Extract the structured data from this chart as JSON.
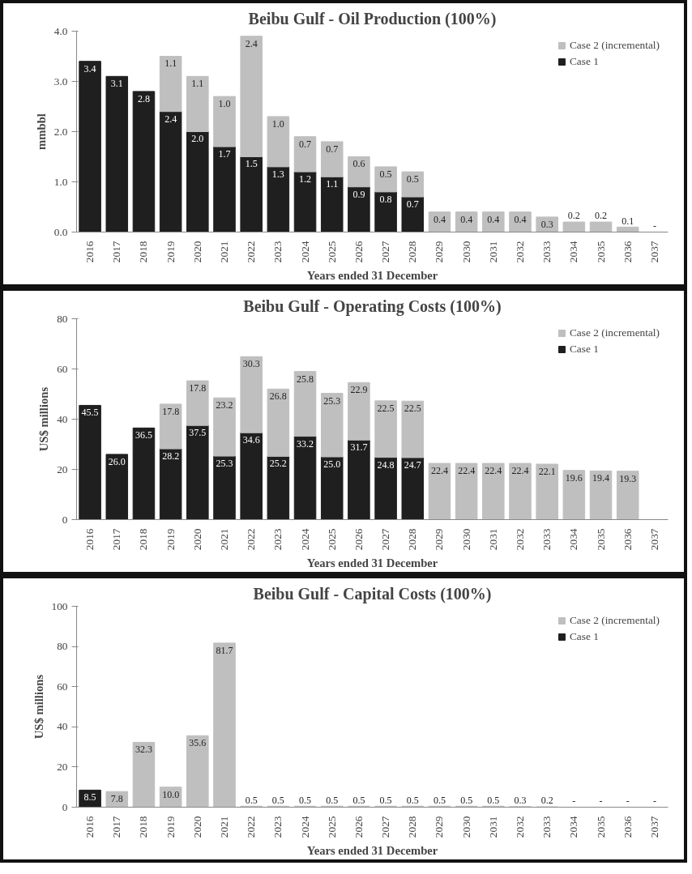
{
  "chart_data": [
    {
      "type": "bar",
      "stacked": true,
      "title": "Beibu Gulf - Oil Production (100%)",
      "xlabel": "Years ended 31 December",
      "ylabel": "mmbbl",
      "categories": [
        "2016",
        "2017",
        "2018",
        "2019",
        "2020",
        "2021",
        "2022",
        "2023",
        "2024",
        "2025",
        "2026",
        "2027",
        "2028",
        "2029",
        "2030",
        "2031",
        "2032",
        "2033",
        "2034",
        "2035",
        "2036",
        "2037"
      ],
      "ylim": [
        0,
        4
      ],
      "yticks": [
        {
          "value": 0,
          "label": "0.0"
        },
        {
          "value": 1,
          "label": "1.0"
        },
        {
          "value": 2,
          "label": "2.0"
        },
        {
          "value": 3,
          "label": "3.0"
        },
        {
          "value": 4,
          "label": "4.0"
        }
      ],
      "grid": false,
      "legend": "top right",
      "series": [
        {
          "name": "Case 1",
          "color": "#1f1f1f",
          "values": [
            3.4,
            3.1,
            2.8,
            2.4,
            2.0,
            1.7,
            1.5,
            1.3,
            1.2,
            1.1,
            0.9,
            0.8,
            0.7,
            null,
            null,
            null,
            null,
            null,
            null,
            null,
            null,
            null
          ],
          "value_labels": [
            "3.4",
            "3.1",
            "2.8",
            "2.4",
            "2.0",
            "1.7",
            "1.5",
            "1.3",
            "1.2",
            "1.1",
            "0.9",
            "0.8",
            "0.7",
            null,
            null,
            null,
            null,
            null,
            null,
            null,
            null,
            null
          ]
        },
        {
          "name": "Case 2 (incremental)",
          "color": "#bfbfbf",
          "values": [
            null,
            null,
            null,
            1.1,
            1.1,
            1.0,
            2.4,
            1.0,
            0.7,
            0.7,
            0.6,
            0.5,
            0.5,
            0.4,
            0.4,
            0.4,
            0.4,
            0.3,
            0.2,
            0.2,
            0.1,
            0
          ],
          "value_labels": [
            null,
            null,
            null,
            "1.1",
            "1.1",
            "1.0",
            "2.4",
            "1.0",
            "0.7",
            "0.7",
            "0.6",
            "0.5",
            "0.5",
            "0.4",
            "0.4",
            "0.4",
            "0.4",
            "0.3",
            "0.2",
            "0.2",
            "0.1",
            "-"
          ]
        }
      ]
    },
    {
      "type": "bar",
      "stacked": true,
      "title": "Beibu Gulf - Operating Costs (100%)",
      "xlabel": "Years ended 31 December",
      "ylabel": "US$ millions",
      "categories": [
        "2016",
        "2017",
        "2018",
        "2019",
        "2020",
        "2021",
        "2022",
        "2023",
        "2024",
        "2025",
        "2026",
        "2027",
        "2028",
        "2029",
        "2030",
        "2031",
        "2032",
        "2033",
        "2034",
        "2035",
        "2036",
        "2037"
      ],
      "ylim": [
        0,
        80
      ],
      "yticks": [
        0,
        20,
        40,
        60,
        80
      ],
      "grid": false,
      "legend": "top right",
      "series": [
        {
          "name": "Case 1",
          "color": "#1f1f1f",
          "values": [
            45.5,
            26.0,
            36.5,
            28.2,
            37.5,
            25.3,
            34.6,
            25.2,
            33.2,
            25.0,
            31.7,
            24.8,
            24.7,
            null,
            null,
            null,
            null,
            null,
            null,
            null,
            null,
            null
          ],
          "value_labels": [
            "45.5",
            "26.0",
            "36.5",
            "28.2",
            "37.5",
            "25.3",
            "34.6",
            "25.2",
            "33.2",
            "25.0",
            "31.7",
            "24.8",
            "24.7",
            null,
            null,
            null,
            null,
            null,
            null,
            null,
            null,
            null
          ]
        },
        {
          "name": "Case 2 (incremental)",
          "color": "#bfbfbf",
          "values": [
            null,
            null,
            null,
            17.8,
            17.8,
            23.2,
            30.3,
            26.8,
            25.8,
            25.3,
            22.9,
            22.5,
            22.5,
            22.4,
            22.4,
            22.4,
            22.4,
            22.1,
            19.6,
            19.4,
            19.3,
            null
          ],
          "value_labels": [
            null,
            null,
            null,
            "17.8",
            "17.8",
            "23.2",
            "30.3",
            "26.8",
            "25.8",
            "25.3",
            "22.9",
            "22.5",
            "22.5",
            "22.4",
            "22.4",
            "22.4",
            "22.4",
            "22.1",
            "19.6",
            "19.4",
            "19.3",
            null
          ]
        }
      ]
    },
    {
      "type": "bar",
      "stacked": true,
      "title": "Beibu Gulf - Capital Costs (100%)",
      "xlabel": "Years ended 31 December",
      "ylabel": "US$ millions",
      "categories": [
        "2016",
        "2017",
        "2018",
        "2019",
        "2020",
        "2021",
        "2022",
        "2023",
        "2024",
        "2025",
        "2026",
        "2027",
        "2028",
        "2029",
        "2030",
        "2031",
        "2032",
        "2033",
        "2034",
        "2035",
        "2036",
        "2037"
      ],
      "ylim": [
        0,
        100
      ],
      "yticks": [
        0,
        20,
        40,
        60,
        80,
        100
      ],
      "grid": false,
      "legend": "top right",
      "series": [
        {
          "name": "Case 1",
          "color": "#1f1f1f",
          "values": [
            8.5,
            null,
            null,
            null,
            null,
            null,
            null,
            null,
            null,
            null,
            null,
            null,
            null,
            null,
            null,
            null,
            null,
            null,
            null,
            null,
            null,
            null
          ],
          "value_labels": [
            "8.5",
            null,
            null,
            null,
            null,
            null,
            null,
            null,
            null,
            null,
            null,
            null,
            null,
            null,
            null,
            null,
            null,
            null,
            null,
            null,
            null,
            null
          ]
        },
        {
          "name": "Case 2 (incremental)",
          "color": "#bfbfbf",
          "values": [
            null,
            7.8,
            32.3,
            10.0,
            35.6,
            81.7,
            0.5,
            0.5,
            0.5,
            0.5,
            0.5,
            0.5,
            0.5,
            0.5,
            0.5,
            0.5,
            0.3,
            0.2,
            0,
            0,
            0,
            0
          ],
          "value_labels": [
            null,
            "7.8",
            "32.3",
            "10.0",
            "35.6",
            "81.7",
            "0.5",
            "0.5",
            "0.5",
            "0.5",
            "0.5",
            "0.5",
            "0.5",
            "0.5",
            "0.5",
            "0.5",
            "0.3",
            "0.2",
            "-",
            "-",
            "-",
            "-"
          ]
        }
      ]
    }
  ]
}
